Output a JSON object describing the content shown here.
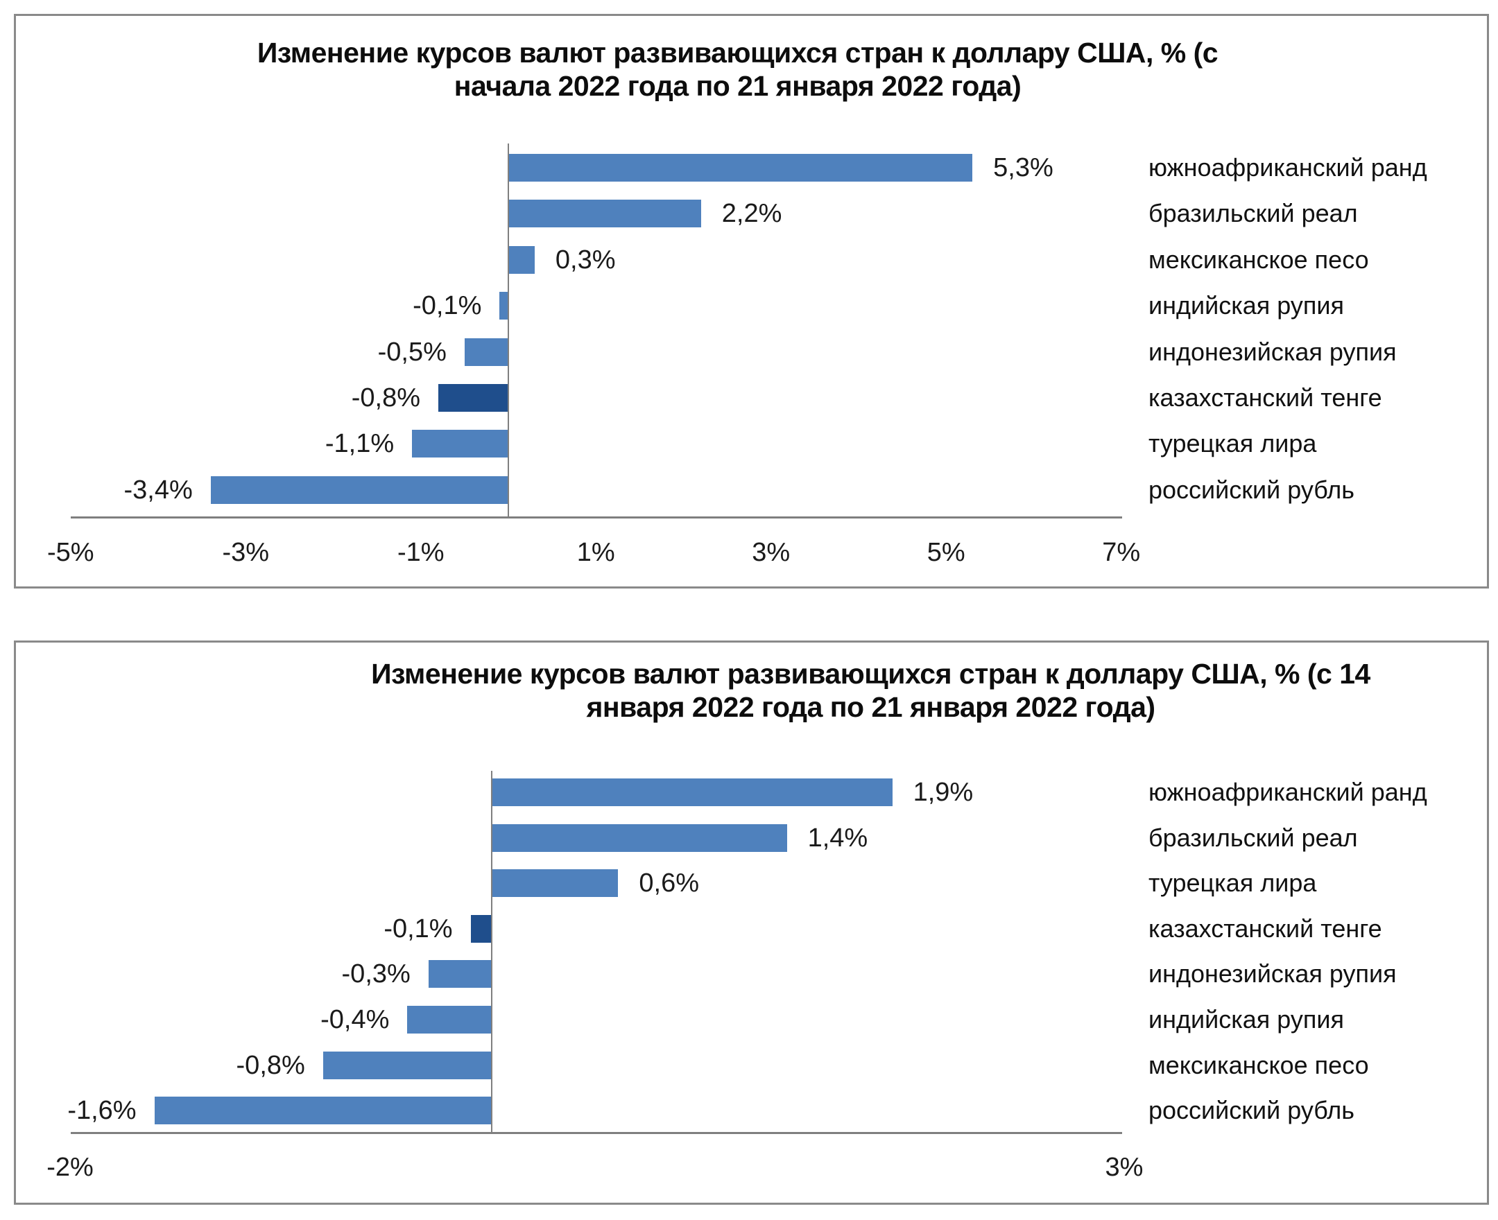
{
  "chart_data": [
    {
      "type": "bar",
      "orientation": "horizontal",
      "title": "Изменение курсов валют развивающихся стран к доллару США, % (с начала 2022 года по 21 января 2022 года)",
      "title_lines": [
        "Изменение курсов валют развивающихся стран к доллару США, % (с",
        "начала 2022 года по 21 января 2022 года)"
      ],
      "categories": [
        "южноафриканский ранд",
        "бразильский реал",
        "мексиканское песо",
        "индийская рупия",
        "индонезийская рупия",
        "казахстанский тенге",
        "турецкая лира",
        "российский рубль"
      ],
      "values": [
        5.3,
        2.2,
        0.3,
        -0.1,
        -0.5,
        -0.8,
        -1.1,
        -3.4
      ],
      "data_labels": [
        "5,3%",
        "2,2%",
        "0,3%",
        "-0,1%",
        "-0,5%",
        "-0,8%",
        "-1,1%",
        "-3,4%"
      ],
      "highlight_index": 5,
      "xlabel": "",
      "ylabel": "",
      "xlim": [
        -5,
        7
      ],
      "x_ticks": [
        "-5%",
        "-3%",
        "-1%",
        "1%",
        "3%",
        "5%",
        "7%"
      ],
      "x_tick_values": [
        -5,
        -3,
        -1,
        1,
        3,
        5,
        7
      ],
      "grid": false,
      "legend": null
    },
    {
      "type": "bar",
      "orientation": "horizontal",
      "title": "Изменение курсов валют развивающихся стран к доллару США, % (с 14 января 2022 года по 21 января 2022 года)",
      "title_lines": [
        "Изменение курсов валют развивающихся стран к доллару США, % (с 14",
        "января 2022 года по 21 января 2022 года)"
      ],
      "categories": [
        "южноафриканский ранд",
        "бразильский реал",
        "турецкая лира",
        "казахстанский тенге",
        "индонезийская рупия",
        "индийская рупия",
        "мексиканское песо",
        "российский рубль"
      ],
      "values": [
        1.9,
        1.4,
        0.6,
        -0.1,
        -0.3,
        -0.4,
        -0.8,
        -1.6
      ],
      "data_labels": [
        "1,9%",
        "1,4%",
        "0,6%",
        "-0,1%",
        "-0,3%",
        "-0,4%",
        "-0,8%",
        "-1,6%"
      ],
      "highlight_index": 3,
      "xlabel": "",
      "ylabel": "",
      "xlim": [
        -2,
        3
      ],
      "x_ticks": [
        "-2%",
        "3%"
      ],
      "x_tick_values": [
        -2,
        3
      ],
      "grid": false,
      "legend": null
    }
  ],
  "colors": {
    "bar": "#4f81bd",
    "bar_highlight": "#1f4e8c",
    "axis": "#7f7f7f",
    "frame": "#8a8a8a",
    "text": "#111111"
  }
}
